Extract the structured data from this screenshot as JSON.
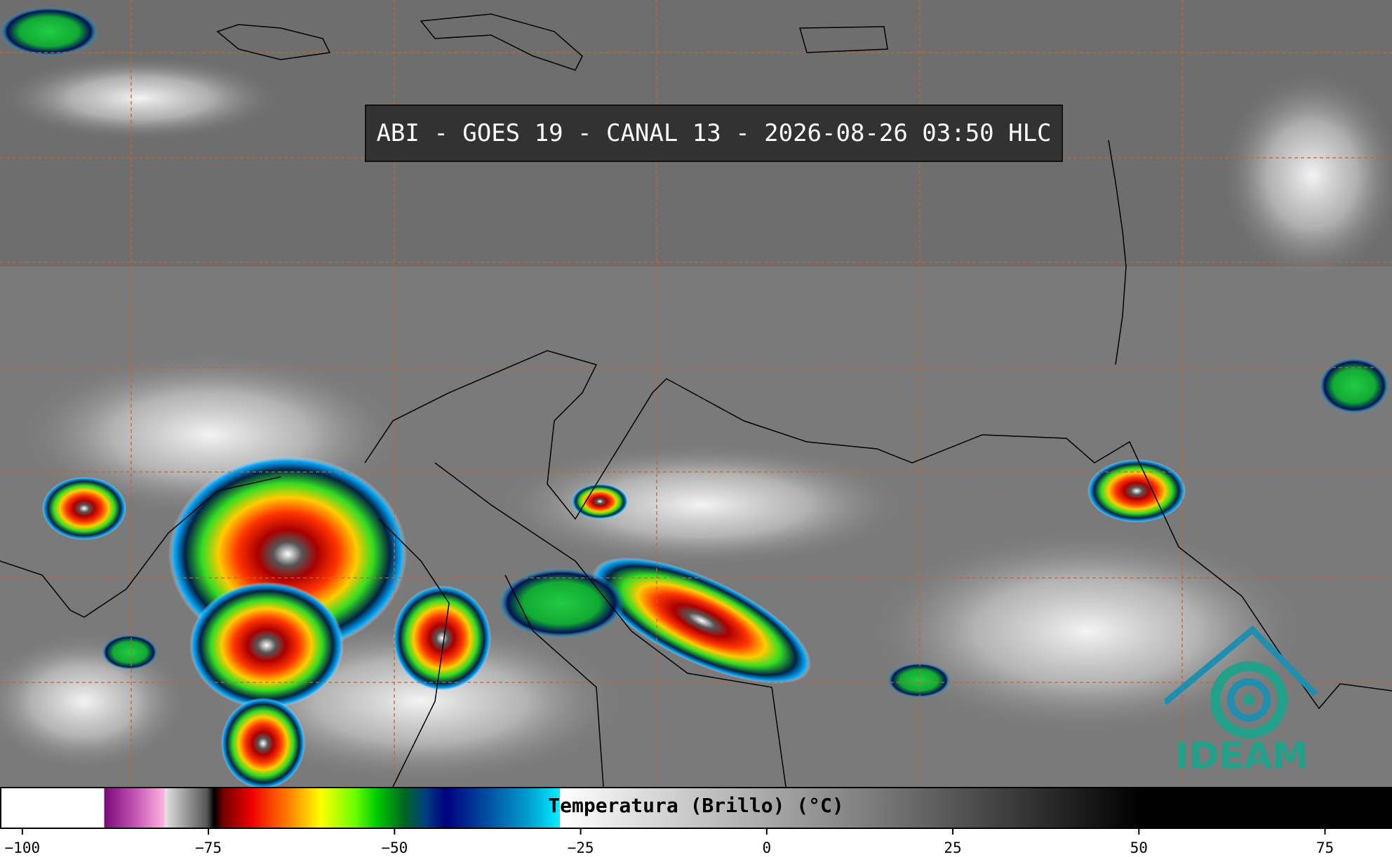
{
  "title": "ABI - GOES 19 - CANAL 13 - 2026-08-26 03:50 HLC",
  "colorbar": {
    "label": "Temperatura (Brillo) (°C)",
    "range": [
      -103,
      84
    ],
    "ticks": [
      {
        "value": -100,
        "label": "−100"
      },
      {
        "value": -75,
        "label": "−75"
      },
      {
        "value": -50,
        "label": "−50"
      },
      {
        "value": -25,
        "label": "−25"
      },
      0,
      25,
      50,
      75
    ]
  },
  "logo": "IDEAM"
}
